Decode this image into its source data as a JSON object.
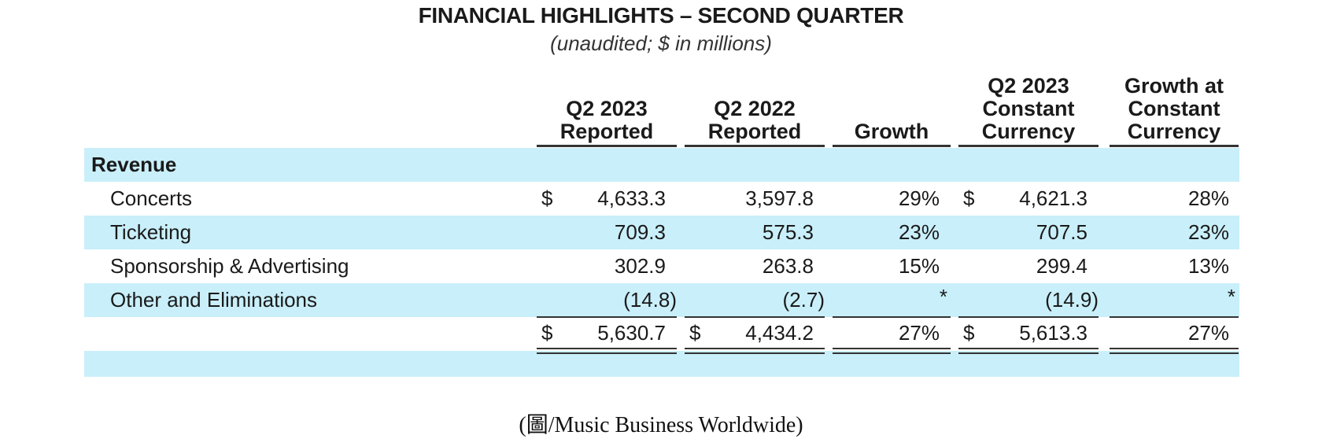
{
  "title": "FINANCIAL HIGHLIGHTS – SECOND QUARTER",
  "subtitle": "(unaudited; $ in millions)",
  "columns": [
    {
      "line1": "Q2 2023",
      "line2": "Reported",
      "line3": ""
    },
    {
      "line1": "Q2 2022",
      "line2": "Reported",
      "line3": ""
    },
    {
      "line1": "",
      "line2": "",
      "line3": "Growth"
    },
    {
      "line1": "Q2 2023",
      "line2": "Constant",
      "line3": "Currency"
    },
    {
      "line1": "Growth at",
      "line2": "Constant",
      "line3": "Currency"
    }
  ],
  "section_label": "Revenue",
  "rows": [
    {
      "label": "Concerts",
      "q2_2023": "4,633.3",
      "q2_2022": "3,597.8",
      "growth": "29%",
      "cc": "4,621.3",
      "growth_cc": "28%",
      "dollar_a": "$",
      "dollar_c": "$"
    },
    {
      "label": "Ticketing",
      "q2_2023": "709.3",
      "q2_2022": "575.3",
      "growth": "23%",
      "cc": "707.5",
      "growth_cc": "23%"
    },
    {
      "label": "Sponsorship & Advertising",
      "q2_2023": "302.9",
      "q2_2022": "263.8",
      "growth": "15%",
      "cc": "299.4",
      "growth_cc": "13%"
    },
    {
      "label": "Other and Eliminations",
      "q2_2023": "(14.8)",
      "q2_2022": "(2.7)",
      "growth": "*",
      "cc": "(14.9)",
      "growth_cc": "*"
    }
  ],
  "total": {
    "q2_2023": "5,630.7",
    "q2_2022": "4,434.2",
    "growth": "27%",
    "cc": "5,613.3",
    "growth_cc": "27%",
    "dollar_a": "$",
    "dollar_b": "$",
    "dollar_c": "$"
  },
  "caption": "(圖/Music Business Worldwide)",
  "colors": {
    "band": "#c9effa",
    "rule": "#333333"
  }
}
